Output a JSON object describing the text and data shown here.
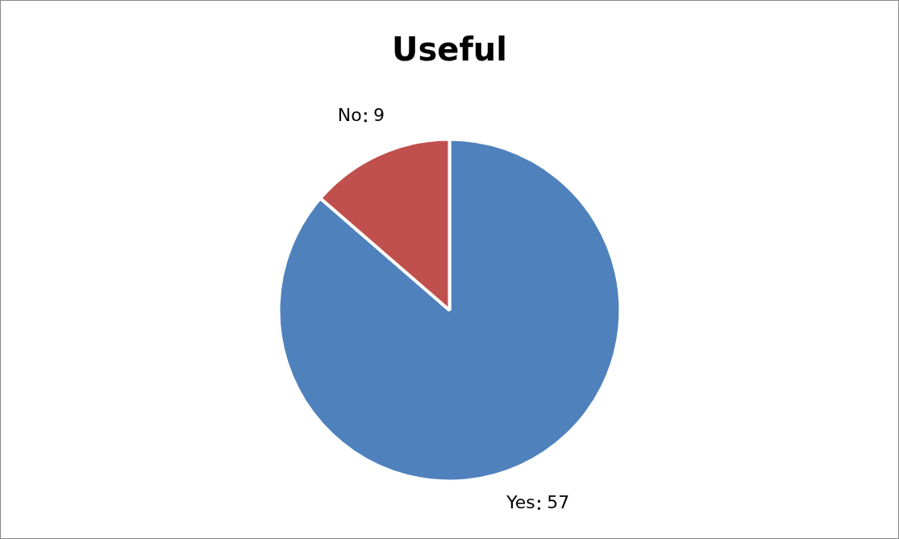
{
  "chart_data": {
    "type": "pie",
    "title": "Useful",
    "categories": [
      "Yes",
      "No"
    ],
    "values": [
      57,
      9
    ],
    "colors": [
      "#4f81bd",
      "#c0504d"
    ],
    "data_labels": true,
    "legend": false
  }
}
